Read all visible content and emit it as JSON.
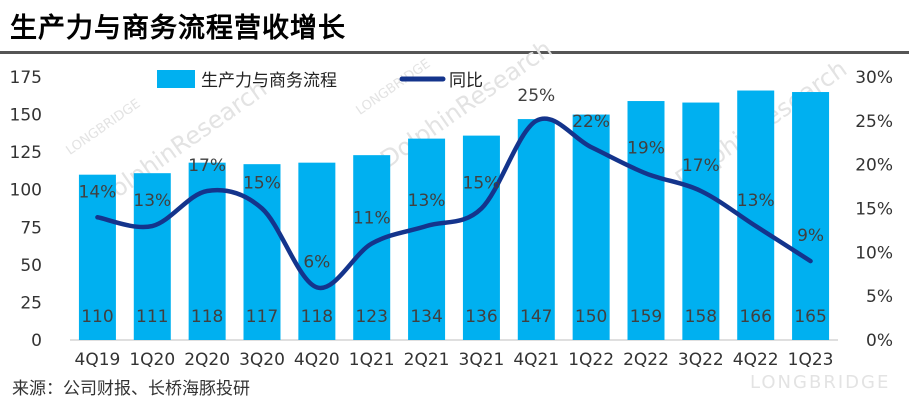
{
  "title": "生产力与商务流程营收增长",
  "source": "来源：公司财报、长桥海豚投研",
  "watermark": {
    "brand": "LONGBRIDGE",
    "text": "DolphinResearch"
  },
  "chart_data": {
    "type": "bar",
    "categories": [
      "4Q19",
      "1Q20",
      "2Q20",
      "3Q20",
      "4Q20",
      "1Q21",
      "2Q21",
      "3Q21",
      "4Q21",
      "1Q22",
      "2Q22",
      "3Q22",
      "4Q22",
      "1Q23"
    ],
    "series": [
      {
        "name": "生产力与商务流程",
        "type": "bar",
        "axis": "left",
        "color": "#00b0f0",
        "values": [
          110,
          111,
          118,
          117,
          118,
          123,
          134,
          136,
          147,
          150,
          159,
          158,
          166,
          165
        ]
      },
      {
        "name": "同比",
        "type": "line",
        "axis": "right",
        "color": "#14348c",
        "values": [
          14,
          13,
          17,
          15,
          6,
          11,
          13,
          15,
          25,
          22,
          19,
          17,
          13,
          9
        ],
        "labels": [
          "14%",
          "13%",
          "17%",
          "15%",
          "6%",
          "11%",
          "13%",
          "15%",
          "25%",
          "22%",
          "19%",
          "17%",
          "13%",
          "9%"
        ]
      }
    ],
    "y_left": {
      "ylim": [
        0,
        175
      ],
      "ticks": [
        0,
        25,
        50,
        75,
        100,
        125,
        150,
        175
      ]
    },
    "y_right": {
      "ylim": [
        0,
        30
      ],
      "ticks": [
        "0%",
        "5%",
        "10%",
        "15%",
        "20%",
        "25%",
        "30%"
      ],
      "unit": "%"
    },
    "legend": {
      "position": "top"
    },
    "grid": false
  }
}
